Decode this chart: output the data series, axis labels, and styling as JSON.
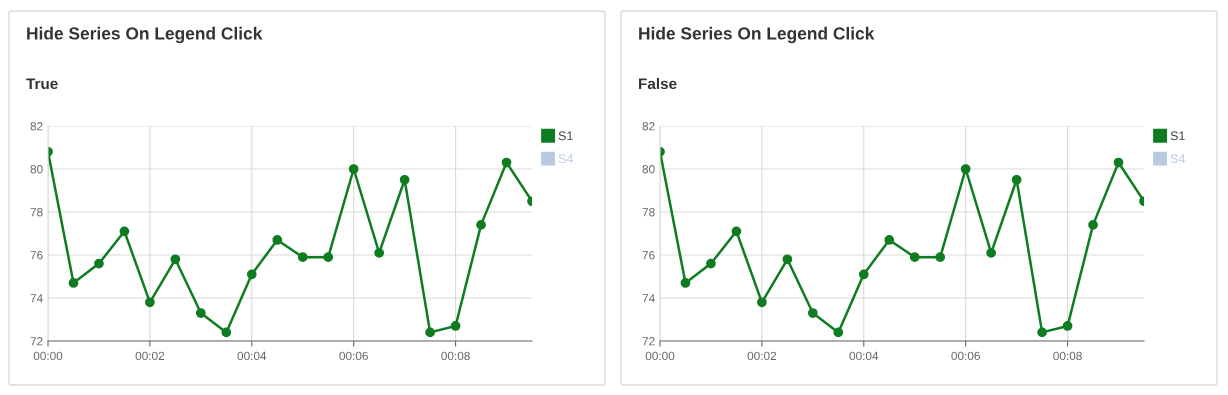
{
  "chart_data": [
    {
      "type": "line",
      "title": "Hide Series On Legend Click",
      "subtitle": "True",
      "x": [
        0,
        0.5,
        1,
        1.5,
        2,
        2.5,
        3,
        3.5,
        4,
        4.5,
        5,
        5.5,
        6,
        6.5,
        7,
        7.5,
        8,
        8.5,
        9,
        9.5
      ],
      "series": [
        {
          "name": "S1",
          "color": "#107c22",
          "values": [
            80.8,
            74.7,
            75.6,
            77.1,
            73.8,
            75.8,
            73.3,
            72.4,
            75.1,
            76.7,
            75.9,
            75.9,
            80.0,
            76.1,
            79.5,
            72.4,
            72.7,
            77.4,
            80.3,
            78.5
          ]
        },
        {
          "name": "S4",
          "color": "#b8c9e0",
          "values": [
            null,
            null,
            null,
            null,
            null,
            null,
            null,
            null,
            null,
            null,
            null,
            null,
            null,
            null,
            null,
            null,
            null,
            null,
            null,
            null
          ]
        }
      ],
      "xlim": [
        0,
        9.5
      ],
      "xticks": [
        {
          "value": 0,
          "label": "00:00"
        },
        {
          "value": 2,
          "label": "00:02"
        },
        {
          "value": 4,
          "label": "00:04"
        },
        {
          "value": 6,
          "label": "00:06"
        },
        {
          "value": 8,
          "label": "00:08"
        }
      ],
      "ylim": [
        72,
        82
      ],
      "yticks": [
        72,
        74,
        76,
        78,
        80,
        82
      ],
      "grid": true,
      "legend": "top right",
      "marker": "circle",
      "line_style": "solid"
    },
    {
      "type": "line",
      "title": "Hide Series On Legend Click",
      "subtitle": "False",
      "x": [
        0,
        0.5,
        1,
        1.5,
        2,
        2.5,
        3,
        3.5,
        4,
        4.5,
        5,
        5.5,
        6,
        6.5,
        7,
        7.5,
        8,
        8.5,
        9,
        9.5
      ],
      "series": [
        {
          "name": "S1",
          "color": "#107c22",
          "values": [
            80.8,
            74.7,
            75.6,
            77.1,
            73.8,
            75.8,
            73.3,
            72.4,
            75.1,
            76.7,
            75.9,
            75.9,
            80.0,
            76.1,
            79.5,
            72.4,
            72.7,
            77.4,
            80.3,
            78.5
          ]
        },
        {
          "name": "S4",
          "color": "#b8c9e0",
          "values": [
            null,
            null,
            null,
            null,
            null,
            null,
            null,
            null,
            null,
            null,
            null,
            null,
            null,
            null,
            null,
            null,
            null,
            null,
            null,
            null
          ]
        }
      ],
      "xlim": [
        0,
        9.5
      ],
      "xticks": [
        {
          "value": 0,
          "label": "00:00"
        },
        {
          "value": 2,
          "label": "00:02"
        },
        {
          "value": 4,
          "label": "00:04"
        },
        {
          "value": 6,
          "label": "00:06"
        },
        {
          "value": 8,
          "label": "00:08"
        }
      ],
      "ylim": [
        72,
        82
      ],
      "yticks": [
        72,
        74,
        76,
        78,
        80,
        82
      ],
      "grid": true,
      "legend": "top right",
      "marker": "circle",
      "line_style": "solid"
    }
  ]
}
